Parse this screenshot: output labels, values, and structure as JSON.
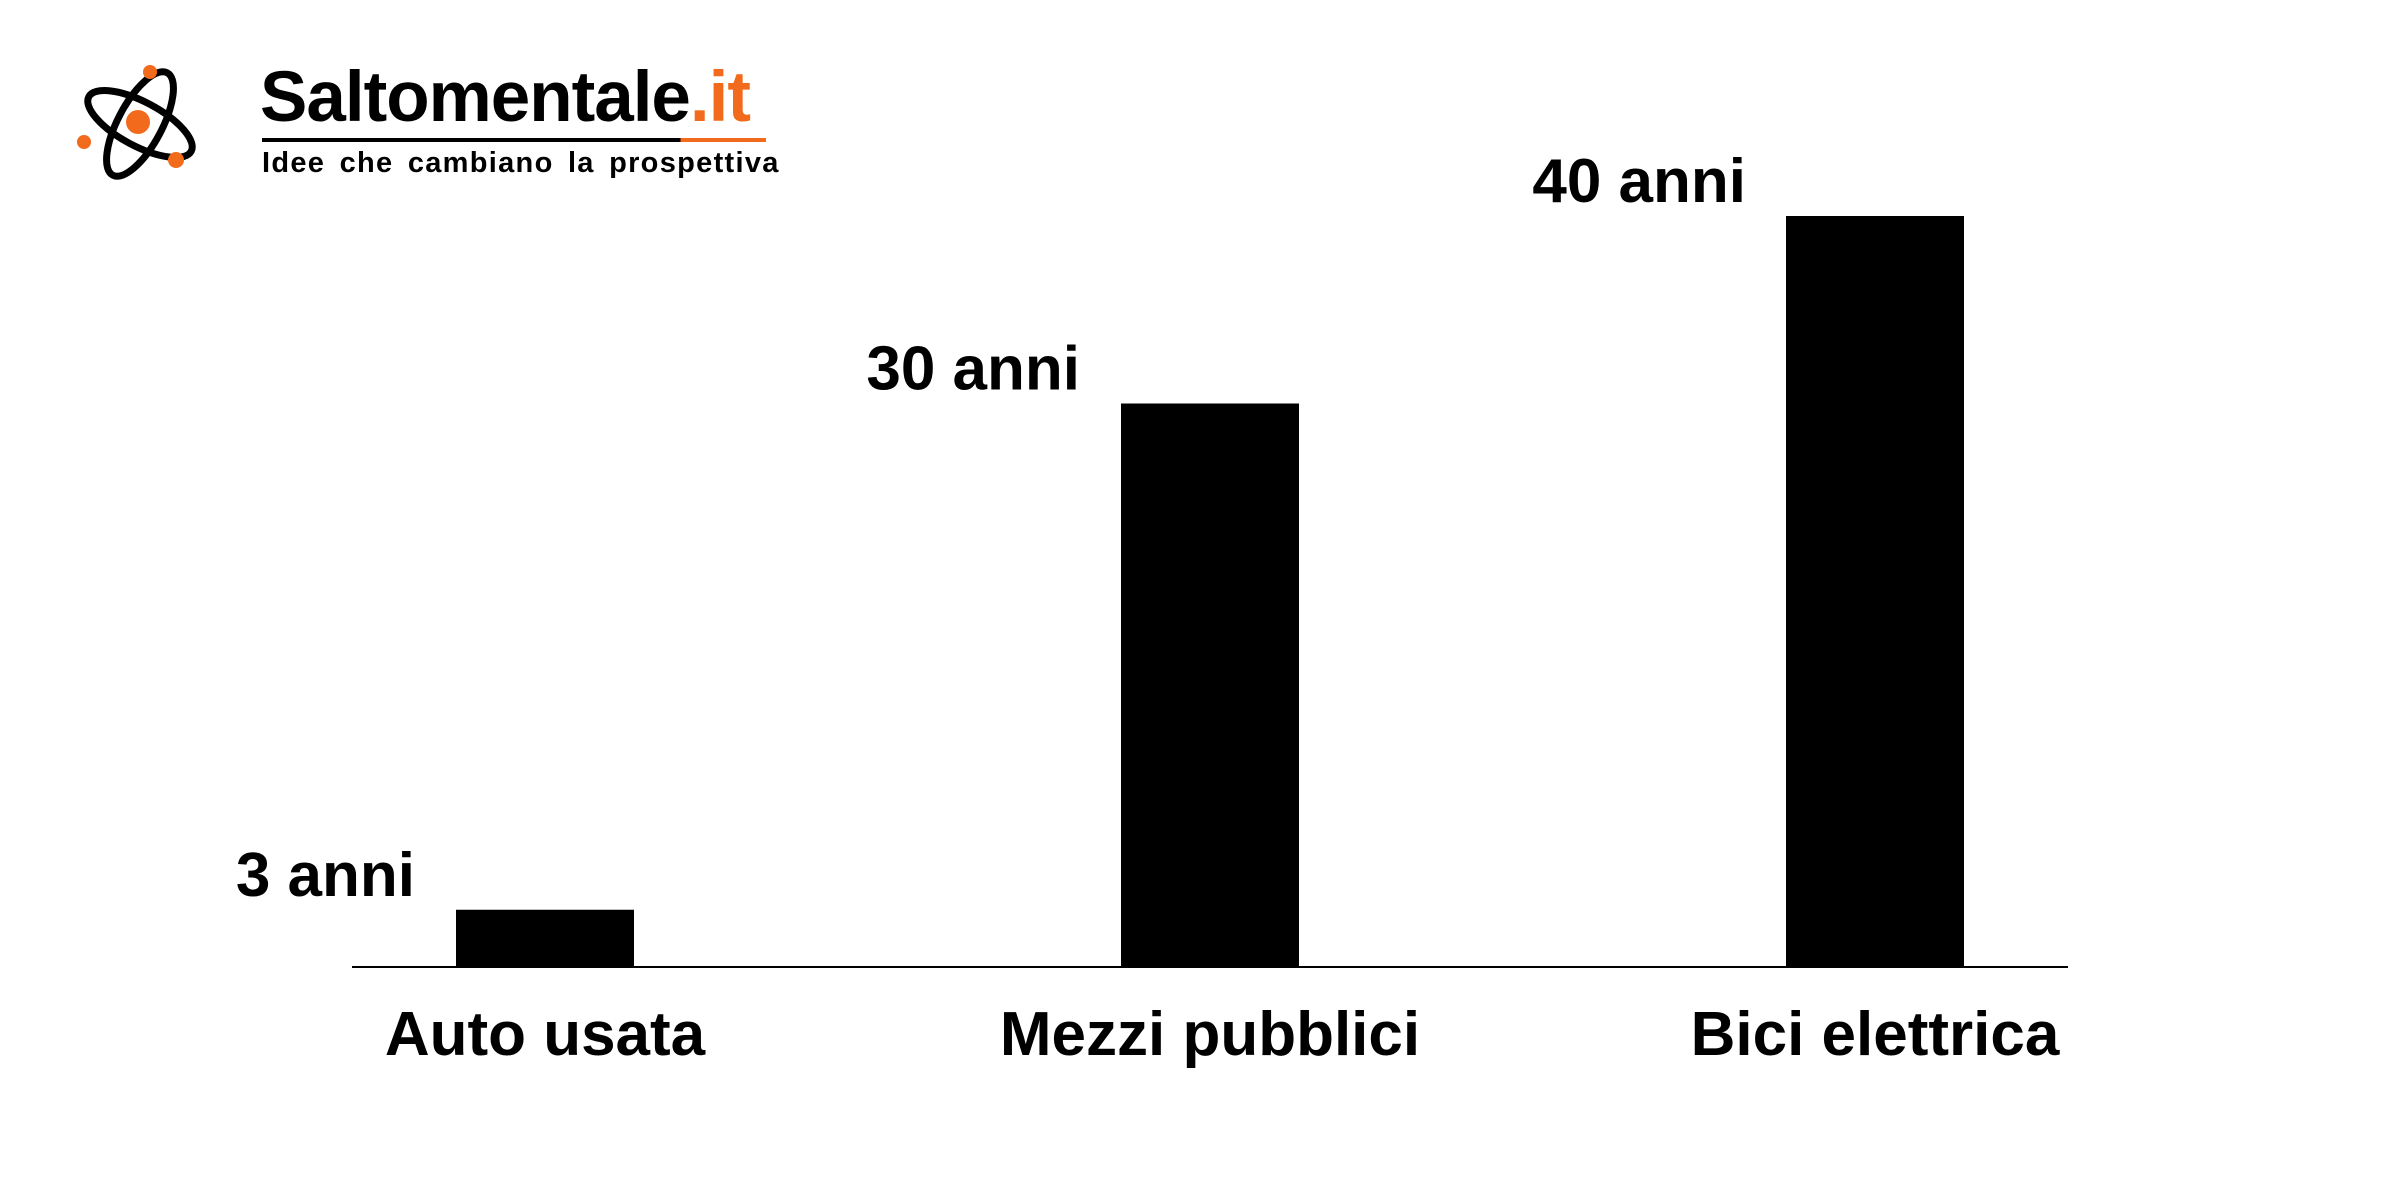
{
  "brand": {
    "name_main": "Saltomentale",
    "name_tld": ".it",
    "tagline": "Idee che cambiano la prospettiva",
    "logo_icon": "atom-icon",
    "colors": {
      "accent": "#f26a1b",
      "text": "#000000"
    }
  },
  "chart_data": {
    "type": "bar",
    "categories": [
      "Auto usata",
      "Mezzi pubblici",
      "Bici elettrica"
    ],
    "values": [
      3,
      30,
      40
    ],
    "data_labels": [
      "3 anni",
      "30 anni",
      "40 anni"
    ],
    "title": "",
    "xlabel": "",
    "ylabel": "",
    "ylim": [
      0,
      40
    ],
    "grid": false,
    "legend": "none",
    "bar_color": "#000000"
  }
}
